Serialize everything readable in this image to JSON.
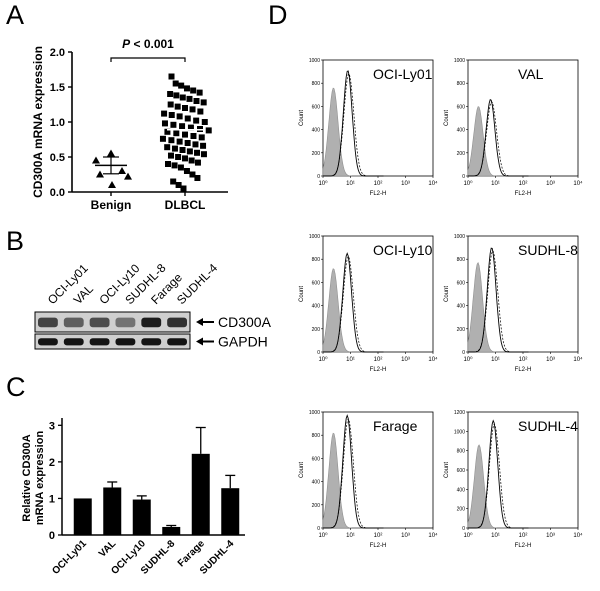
{
  "figure": {
    "panels": [
      {
        "letter": "A"
      },
      {
        "letter": "B"
      },
      {
        "letter": "C"
      },
      {
        "letter": "D"
      }
    ]
  },
  "chart_data": [
    {
      "panel": "A",
      "type": "scatter",
      "ylabel": "CD300A mRNA expression",
      "ylim": [
        0,
        2.0
      ],
      "yticks": [
        "0.0",
        "0.5",
        "1.0",
        "1.5",
        "2.0"
      ],
      "categories": [
        "Benign",
        "DLBCL"
      ],
      "annotation": "P < 0.001",
      "groups": [
        {
          "name": "Benign",
          "marker": "triangle",
          "mean": 0.38,
          "sem": 0.12,
          "values": [
            0.55,
            0.45,
            0.3,
            0.25,
            0.22,
            0.1
          ]
        },
        {
          "name": "DLBCL",
          "marker": "square",
          "mean": 0.89,
          "sem": 0.04,
          "values": [
            1.65,
            1.55,
            1.52,
            1.48,
            1.45,
            1.42,
            1.4,
            1.38,
            1.35,
            1.33,
            1.3,
            1.28,
            1.25,
            1.22,
            1.2,
            1.18,
            1.15,
            1.12,
            1.1,
            1.08,
            1.05,
            1.02,
            1.0,
            0.98,
            0.96,
            0.94,
            0.92,
            0.9,
            0.88,
            0.86,
            0.84,
            0.82,
            0.8,
            0.78,
            0.76,
            0.74,
            0.72,
            0.7,
            0.68,
            0.66,
            0.64,
            0.62,
            0.6,
            0.58,
            0.56,
            0.54,
            0.52,
            0.5,
            0.48,
            0.45,
            0.42,
            0.4,
            0.38,
            0.35,
            0.3,
            0.25,
            0.2,
            0.15,
            0.1,
            0.05
          ]
        }
      ]
    },
    {
      "panel": "C",
      "type": "bar",
      "ylabel": "Relative CD300A\nmRNA expression",
      "ylim": [
        0,
        3.2
      ],
      "yticks": [
        "0",
        "1",
        "2",
        "3"
      ],
      "categories": [
        "OCI-Ly01",
        "VAL",
        "OCI-Ly10",
        "SUDHL-8",
        "Farage",
        "SUDHL-4"
      ],
      "values": [
        1.0,
        1.3,
        0.97,
        0.22,
        2.22,
        1.28
      ],
      "errors": [
        0.0,
        0.15,
        0.1,
        0.04,
        0.72,
        0.35
      ]
    },
    {
      "panel": "D",
      "type": "histogram",
      "xlabel": "FL2-H",
      "ylabel": "Count",
      "xticks": [
        "10⁰",
        "10¹",
        "10²",
        "10³",
        "10⁴"
      ],
      "plots": [
        {
          "label": "OCI-Ly01",
          "ymax": 1000,
          "yticks": [
            "0",
            "200",
            "400",
            "600",
            "800",
            "1000"
          ],
          "iso_peak": [
            0.38,
            760
          ],
          "cd_peak": [
            0.9,
            910
          ]
        },
        {
          "label": "VAL",
          "ymax": 1000,
          "yticks": [
            "0",
            "200",
            "400",
            "600",
            "800",
            "1000"
          ],
          "iso_peak": [
            0.38,
            600
          ],
          "cd_peak": [
            0.82,
            660
          ]
        },
        {
          "label": "OCI-Ly10",
          "ymax": 1000,
          "yticks": [
            "0",
            "200",
            "400",
            "600",
            "800",
            "1000"
          ],
          "iso_peak": [
            0.38,
            720
          ],
          "cd_peak": [
            0.88,
            850
          ]
        },
        {
          "label": "SUDHL-8",
          "ymax": 1000,
          "yticks": [
            "0",
            "200",
            "400",
            "600",
            "800",
            "1000"
          ],
          "iso_peak": [
            0.36,
            770
          ],
          "cd_peak": [
            0.86,
            900
          ]
        },
        {
          "label": "Farage",
          "ymax": 1000,
          "yticks": [
            "0",
            "200",
            "400",
            "600",
            "800",
            "1000"
          ],
          "iso_peak": [
            0.38,
            820
          ],
          "cd_peak": [
            0.88,
            970
          ]
        },
        {
          "label": "SUDHL-4",
          "ymax": 1200,
          "yticks": [
            "0",
            "200",
            "400",
            "600",
            "800",
            "1000",
            "1200"
          ],
          "iso_peak": [
            0.4,
            860
          ],
          "cd_peak": [
            0.92,
            1110
          ]
        }
      ]
    }
  ],
  "blot": {
    "lanes": [
      "OCI-Ly01",
      "VAL",
      "OCI-Ly10",
      "SUDHL-8",
      "Farage",
      "SUDHL-4"
    ],
    "rows": [
      {
        "label": "CD300A",
        "intensities": [
          0.7,
          0.55,
          0.65,
          0.45,
          0.9,
          0.8
        ]
      },
      {
        "label": "GAPDH",
        "intensities": [
          0.95,
          0.95,
          0.95,
          0.95,
          0.95,
          0.95
        ]
      }
    ]
  }
}
